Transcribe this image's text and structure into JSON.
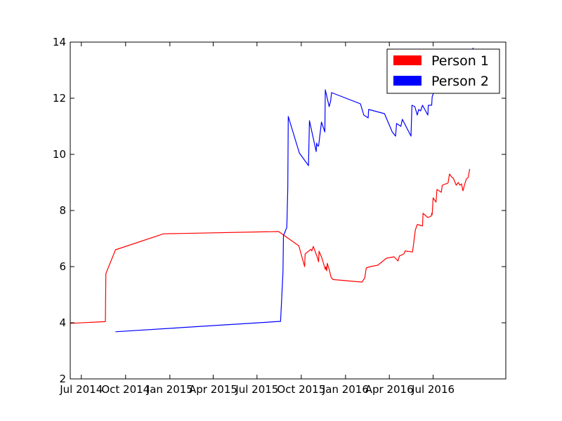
{
  "chart_data": {
    "type": "line",
    "title": "",
    "xlabel": "",
    "ylabel": "",
    "xlim": [
      "2014-06-08",
      "2016-11-29"
    ],
    "ylim": [
      2,
      14
    ],
    "x_ticks": [
      {
        "date": "2014-07-01",
        "label": "Jul 2014"
      },
      {
        "date": "2014-10-01",
        "label": "Oct 2014"
      },
      {
        "date": "2015-01-01",
        "label": "Jan 2015"
      },
      {
        "date": "2015-04-01",
        "label": "Apr 2015"
      },
      {
        "date": "2015-07-01",
        "label": "Jul 2015"
      },
      {
        "date": "2015-10-01",
        "label": "Oct 2015"
      },
      {
        "date": "2016-01-01",
        "label": "Jan 2016"
      },
      {
        "date": "2016-04-01",
        "label": "Apr 2016"
      },
      {
        "date": "2016-07-01",
        "label": "Jul 2016"
      }
    ],
    "y_ticks": [
      {
        "value": 2,
        "label": "2"
      },
      {
        "value": 4,
        "label": "4"
      },
      {
        "value": 6,
        "label": "6"
      },
      {
        "value": 8,
        "label": "8"
      },
      {
        "value": 10,
        "label": "10"
      },
      {
        "value": 12,
        "label": "12"
      },
      {
        "value": 14,
        "label": "14"
      }
    ],
    "grid": false,
    "legend_position": "top-right",
    "series": [
      {
        "name": "Person 1",
        "color": "#ff0000",
        "points": [
          [
            "2014-06-08",
            3.98
          ],
          [
            "2014-08-20",
            4.04
          ],
          [
            "2014-08-21",
            5.75
          ],
          [
            "2014-09-10",
            6.6
          ],
          [
            "2014-12-19",
            7.17
          ],
          [
            "2015-08-15",
            7.25
          ],
          [
            "2015-09-26",
            6.74
          ],
          [
            "2015-10-08",
            6.0
          ],
          [
            "2015-10-09",
            6.45
          ],
          [
            "2015-10-21",
            6.62
          ],
          [
            "2015-10-23",
            6.56
          ],
          [
            "2015-10-26",
            6.72
          ],
          [
            "2015-11-04",
            6.3
          ],
          [
            "2015-11-06",
            6.17
          ],
          [
            "2015-11-07",
            6.55
          ],
          [
            "2015-11-13",
            6.3
          ],
          [
            "2015-11-20",
            5.9
          ],
          [
            "2015-11-21",
            6.0
          ],
          [
            "2015-11-23",
            5.85
          ],
          [
            "2015-11-24",
            6.12
          ],
          [
            "2015-11-28",
            5.9
          ],
          [
            "2015-12-02",
            5.62
          ],
          [
            "2015-12-06",
            5.54
          ],
          [
            "2016-02-04",
            5.45
          ],
          [
            "2016-02-10",
            5.6
          ],
          [
            "2016-02-13",
            5.95
          ],
          [
            "2016-02-21",
            6.0
          ],
          [
            "2016-03-08",
            6.05
          ],
          [
            "2016-03-26",
            6.3
          ],
          [
            "2016-04-11",
            6.35
          ],
          [
            "2016-04-19",
            6.2
          ],
          [
            "2016-04-22",
            6.38
          ],
          [
            "2016-05-01",
            6.45
          ],
          [
            "2016-05-04",
            6.56
          ],
          [
            "2016-05-19",
            6.52
          ],
          [
            "2016-05-21",
            6.75
          ],
          [
            "2016-05-25",
            7.3
          ],
          [
            "2016-05-29",
            7.5
          ],
          [
            "2016-06-09",
            7.45
          ],
          [
            "2016-06-10",
            7.9
          ],
          [
            "2016-06-20",
            7.75
          ],
          [
            "2016-06-27",
            7.8
          ],
          [
            "2016-06-28",
            7.9
          ],
          [
            "2016-06-29",
            7.85
          ],
          [
            "2016-07-01",
            8.45
          ],
          [
            "2016-07-07",
            8.3
          ],
          [
            "2016-07-09",
            8.75
          ],
          [
            "2016-07-18",
            8.65
          ],
          [
            "2016-07-20",
            8.9
          ],
          [
            "2016-08-01",
            8.98
          ],
          [
            "2016-08-04",
            9.3
          ],
          [
            "2016-08-08",
            9.2
          ],
          [
            "2016-08-12",
            9.15
          ],
          [
            "2016-08-18",
            8.9
          ],
          [
            "2016-08-22",
            9.0
          ],
          [
            "2016-08-26",
            8.9
          ],
          [
            "2016-08-29",
            8.95
          ],
          [
            "2016-09-01",
            8.7
          ],
          [
            "2016-09-04",
            8.9
          ],
          [
            "2016-09-08",
            9.12
          ],
          [
            "2016-09-12",
            9.18
          ],
          [
            "2016-09-15",
            9.48
          ]
        ]
      },
      {
        "name": "Person 2",
        "color": "#0000ff",
        "points": [
          [
            "2014-09-10",
            3.68
          ],
          [
            "2015-08-19",
            4.05
          ],
          [
            "2015-08-24",
            5.8
          ],
          [
            "2015-08-25",
            7.1
          ],
          [
            "2015-09-01",
            7.4
          ],
          [
            "2015-09-03",
            8.8
          ],
          [
            "2015-09-04",
            11.35
          ],
          [
            "2015-09-27",
            10.05
          ],
          [
            "2015-10-16",
            9.6
          ],
          [
            "2015-10-18",
            11.2
          ],
          [
            "2015-11-01",
            10.1
          ],
          [
            "2015-11-02",
            10.4
          ],
          [
            "2015-11-04",
            10.3
          ],
          [
            "2015-11-06",
            10.3
          ],
          [
            "2015-11-12",
            11.15
          ],
          [
            "2015-11-19",
            10.8
          ],
          [
            "2015-11-20",
            12.3
          ],
          [
            "2015-11-28",
            11.7
          ],
          [
            "2015-12-01",
            11.9
          ],
          [
            "2015-12-03",
            12.2
          ],
          [
            "2016-02-01",
            11.8
          ],
          [
            "2016-02-08",
            11.4
          ],
          [
            "2016-02-17",
            11.3
          ],
          [
            "2016-02-18",
            11.6
          ],
          [
            "2016-03-22",
            11.45
          ],
          [
            "2016-04-07",
            10.8
          ],
          [
            "2016-04-14",
            10.65
          ],
          [
            "2016-04-16",
            11.1
          ],
          [
            "2016-04-25",
            11.0
          ],
          [
            "2016-04-28",
            11.25
          ],
          [
            "2016-05-10",
            10.85
          ],
          [
            "2016-05-16",
            10.65
          ],
          [
            "2016-05-18",
            11.75
          ],
          [
            "2016-05-24",
            11.7
          ],
          [
            "2016-05-29",
            11.4
          ],
          [
            "2016-06-01",
            11.6
          ],
          [
            "2016-06-05",
            11.55
          ],
          [
            "2016-06-09",
            11.75
          ],
          [
            "2016-06-20",
            11.4
          ],
          [
            "2016-06-21",
            11.75
          ],
          [
            "2016-06-28",
            11.75
          ],
          [
            "2016-06-29",
            12.05
          ],
          [
            "2016-07-03",
            12.25
          ],
          [
            "2016-07-10",
            12.55
          ],
          [
            "2016-07-13",
            12.9
          ],
          [
            "2016-07-14",
            13.1
          ],
          [
            "2016-07-15",
            12.9
          ],
          [
            "2016-09-01",
            12.9
          ],
          [
            "2016-09-06",
            12.4
          ],
          [
            "2016-09-09",
            12.9
          ],
          [
            "2016-09-14",
            13.0
          ],
          [
            "2016-09-18",
            13.1
          ],
          [
            "2016-09-22",
            13.8
          ]
        ]
      }
    ]
  }
}
